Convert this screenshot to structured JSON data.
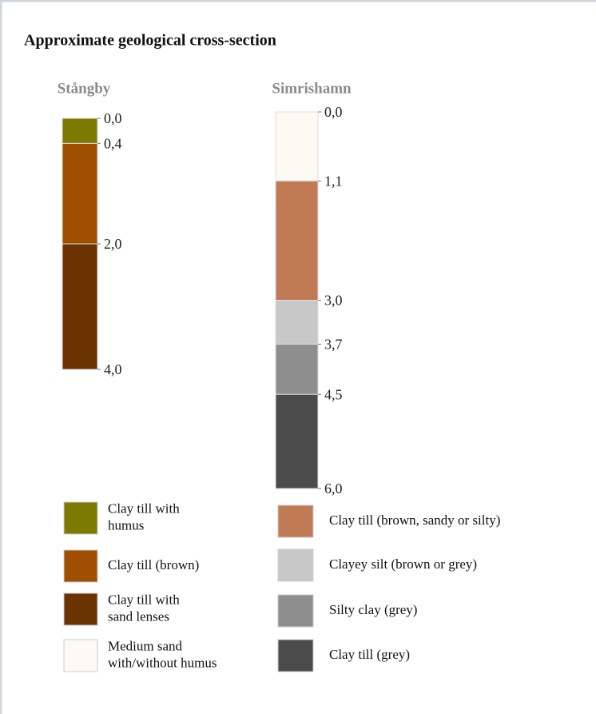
{
  "title": "Approximate geological cross-section",
  "columns": [
    {
      "name": "Stångby",
      "depths": [
        {
          "value": 0,
          "label": "0,0"
        },
        {
          "value": 0.4,
          "label": "0,4"
        },
        {
          "value": 2.0,
          "label": "2,0"
        },
        {
          "value": 4.0,
          "label": "4,0"
        }
      ],
      "layer_colors": [
        "#7d7a00",
        "#a04f00",
        "#6b3300"
      ]
    },
    {
      "name": "Simrishamn",
      "depths": [
        {
          "value": 0,
          "label": "0,0"
        },
        {
          "value": 1.1,
          "label": "1,1"
        },
        {
          "value": 3.0,
          "label": "3,0"
        },
        {
          "value": 3.7,
          "label": "3,7"
        },
        {
          "value": 4.5,
          "label": "4,5"
        },
        {
          "value": 6.0,
          "label": "6,0"
        }
      ],
      "layer_colors": [
        "#fdfaf4",
        "#c07a54",
        "#c8c8c8",
        "#8e8e8e",
        "#4b4b4b"
      ]
    }
  ],
  "legend": [
    [
      {
        "color": "#7d7a00",
        "lines": [
          "Clay till with",
          "humus"
        ]
      },
      {
        "color": "#a04f00",
        "lines": [
          "Clay till (brown)"
        ]
      },
      {
        "color": "#6b3300",
        "lines": [
          "Clay till with",
          "sand lenses"
        ]
      },
      {
        "color": "#fdfaf4",
        "lines": [
          "Medium sand",
          "with/without humus"
        ]
      }
    ],
    [
      {
        "color": "#c07a54",
        "lines": [
          "Clay till (brown, sandy or silty)"
        ]
      },
      {
        "color": "#c8c8c8",
        "lines": [
          "Clayey silt (brown or grey)"
        ]
      },
      {
        "color": "#8e8e8e",
        "lines": [
          "Silty clay (grey)"
        ]
      },
      {
        "color": "#4b4b4b",
        "lines": [
          "Clay till (grey)"
        ]
      }
    ]
  ]
}
